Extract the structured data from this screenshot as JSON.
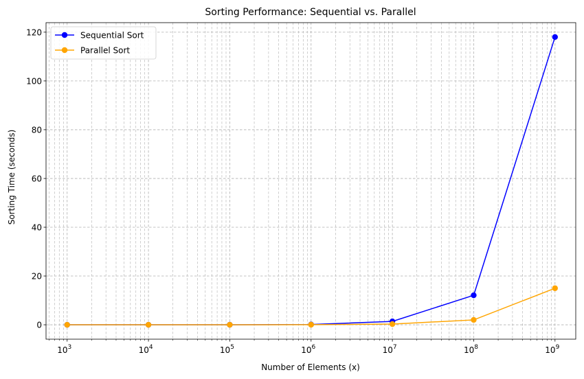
{
  "chart_data": {
    "type": "line",
    "title": "Sorting Performance: Sequential vs. Parallel",
    "xlabel": "Number of Elements (x)",
    "ylabel": "Sorting Time (seconds)",
    "xscale": "log",
    "x": [
      1000,
      10000,
      100000,
      1000000,
      10000000,
      100000000,
      1000000000
    ],
    "x_tick_labels": [
      {
        "base": "10",
        "exp": "3"
      },
      {
        "base": "10",
        "exp": "4"
      },
      {
        "base": "10",
        "exp": "5"
      },
      {
        "base": "10",
        "exp": "6"
      },
      {
        "base": "10",
        "exp": "7"
      },
      {
        "base": "10",
        "exp": "8"
      },
      {
        "base": "10",
        "exp": "9"
      }
    ],
    "y_ticks": [
      0,
      20,
      40,
      60,
      80,
      100,
      120
    ],
    "y_tick_labels": [
      "0",
      "20",
      "40",
      "60",
      "80",
      "100",
      "120"
    ],
    "xlim": [
      550,
      1800000000
    ],
    "ylim": [
      -5.9,
      123.9
    ],
    "grid": true,
    "legend_position": "top-left",
    "series": [
      {
        "name": "Sequential Sort",
        "color": "#0000ff",
        "marker": "circle",
        "values": [
          0.0001,
          0.001,
          0.01,
          0.12,
          1.4,
          12.1,
          118
        ]
      },
      {
        "name": "Parallel Sort",
        "color": "#ffa500",
        "marker": "circle",
        "values": [
          0.0001,
          0.0005,
          0.005,
          0.05,
          0.3,
          2.0,
          15.0
        ]
      }
    ]
  }
}
